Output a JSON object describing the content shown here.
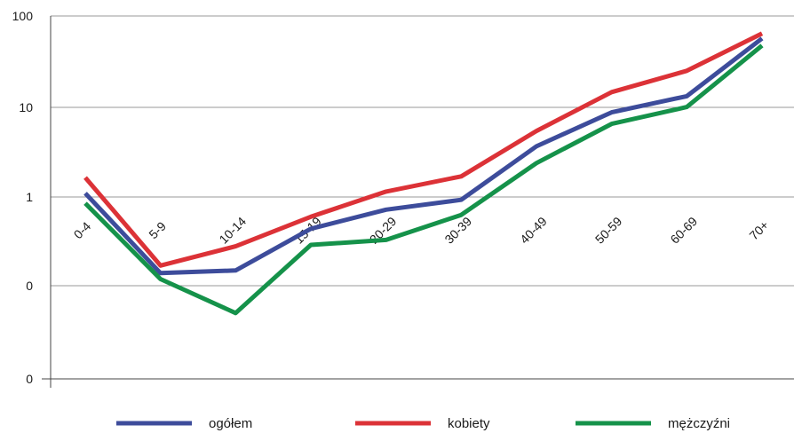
{
  "chart_data": {
    "type": "line",
    "y_scale": "log",
    "grid": "horizontal",
    "legend_placement": "bottom",
    "categories": [
      "0-4",
      "5-9",
      "10-14",
      "15-19",
      "20-29",
      "30-39",
      "40-49",
      "50-59",
      "60-69",
      "70+"
    ],
    "y_tick_labels": [
      "0",
      "0",
      "1",
      "10",
      "100"
    ],
    "series": [
      {
        "name": "ogółem",
        "color": "#3d4c9b",
        "values": [
          1.1,
          0.14,
          0.15,
          0.44,
          0.72,
          0.93,
          3.7,
          8.9,
          13.5,
          60
        ]
      },
      {
        "name": "kobiety",
        "color": "#dc3237",
        "values": [
          1.65,
          0.17,
          0.28,
          0.6,
          1.15,
          1.7,
          5.5,
          15,
          26,
          68
        ]
      },
      {
        "name": "mężczyźni",
        "color": "#15924a",
        "values": [
          0.85,
          0.12,
          0.05,
          0.29,
          0.33,
          0.63,
          2.4,
          6.6,
          10.2,
          50
        ]
      }
    ]
  }
}
